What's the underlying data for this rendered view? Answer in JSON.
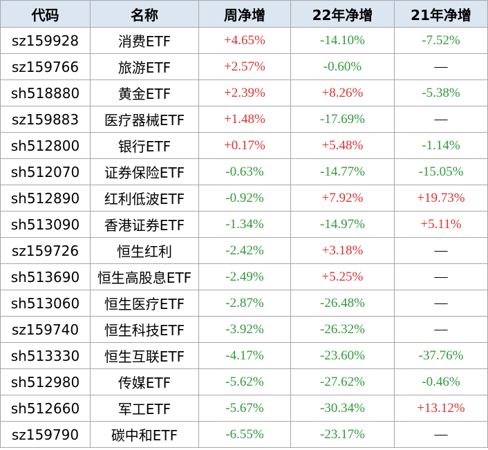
{
  "table": {
    "header": [
      "代码",
      "名称",
      "周净增",
      "22年净增",
      "21年净增"
    ],
    "rows": [
      [
        "sz159928",
        "消费ETF",
        "+4.65%",
        "-14.10%",
        "-7.52%"
      ],
      [
        "sz159766",
        "旅游ETF",
        "+2.57%",
        "-0.60%",
        "—"
      ],
      [
        "sh518880",
        "黄金ETF",
        "+2.39%",
        "+8.26%",
        "-5.38%"
      ],
      [
        "sz159883",
        "医疗器械ETF",
        "+1.48%",
        "-17.69%",
        "—"
      ],
      [
        "sh512800",
        "银行ETF",
        "+0.17%",
        "+5.48%",
        "-1.14%"
      ],
      [
        "sh512070",
        "证券保险ETF",
        "-0.63%",
        "-14.77%",
        "-15.05%"
      ],
      [
        "sh512890",
        "红利低波ETF",
        "-0.92%",
        "+7.92%",
        "+19.73%"
      ],
      [
        "sh513090",
        "香港证券ETF",
        "-1.34%",
        "-14.97%",
        "+5.11%"
      ],
      [
        "sz159726",
        "恒生红利",
        "-2.42%",
        "+3.18%",
        "—"
      ],
      [
        "sh513690",
        "恒生高股息ETF",
        "-2.49%",
        "+5.25%",
        "—"
      ],
      [
        "sh513060",
        "恒生医疗ETF",
        "-2.87%",
        "-26.48%",
        "—"
      ],
      [
        "sz159740",
        "恒生科技ETF",
        "-3.92%",
        "-26.32%",
        "—"
      ],
      [
        "sh513330",
        "恒生互联ETF",
        "-4.17%",
        "-23.60%",
        "-37.76%"
      ],
      [
        "sh512980",
        "传媒ETF",
        "-5.62%",
        "-27.62%",
        "-0.46%"
      ],
      [
        "sh512660",
        "军工ETF",
        "-5.67%",
        "-30.34%",
        "+13.12%"
      ],
      [
        "sz159790",
        "碳中和ETF",
        "-6.55%",
        "-23.17%",
        "—"
      ]
    ]
  }
}
